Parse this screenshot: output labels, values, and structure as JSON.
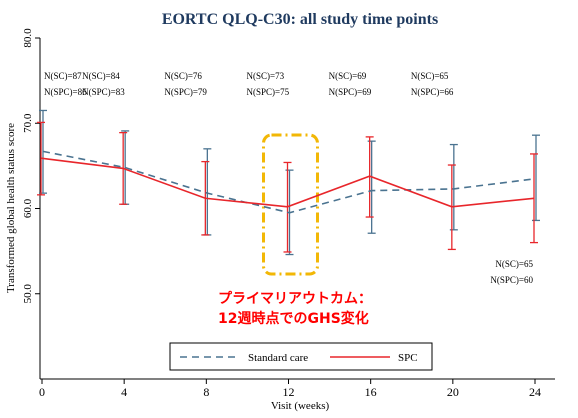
{
  "chart_data": {
    "type": "line",
    "title": "EORTC QLQ-C30: all study time points",
    "xlabel": "Visit (weeks)",
    "ylabel": "Transformed global health status score",
    "x": [
      0,
      4,
      8,
      12,
      16,
      20,
      24
    ],
    "xlim": [
      0,
      24
    ],
    "ylim": [
      40,
      80
    ],
    "xticks": [
      "0",
      "4",
      "8",
      "12",
      "16",
      "20",
      "24"
    ],
    "yticks": [
      "50.0",
      "60.0",
      "70.0",
      "80.0"
    ],
    "grid": false,
    "legend_position": "bottom",
    "series": [
      {
        "name": "Standard care",
        "color": "#4a7390",
        "style": "dashed",
        "values": [
          66.7,
          64.8,
          61.8,
          59.5,
          62.1,
          62.3,
          63.5
        ],
        "ci_low": [
          61.8,
          60.5,
          56.9,
          54.6,
          57.1,
          57.5,
          58.6
        ],
        "ci_high": [
          71.5,
          69.1,
          67.0,
          64.5,
          67.9,
          67.5,
          68.6
        ]
      },
      {
        "name": "SPC",
        "color": "#e8262b",
        "style": "solid",
        "values": [
          65.9,
          64.7,
          61.2,
          60.2,
          63.8,
          60.2,
          61.2
        ],
        "ci_low": [
          61.6,
          60.5,
          56.9,
          54.9,
          59.0,
          55.2,
          56.0
        ],
        "ci_high": [
          70.1,
          68.9,
          65.5,
          65.4,
          68.4,
          65.1,
          66.4
        ]
      }
    ],
    "n_labels": [
      {
        "x": 0,
        "sc": "N(SC)=87",
        "spc": "N(SPC)=86"
      },
      {
        "x": 4,
        "sc": "N(SC)=84",
        "spc": "N(SPC)=83"
      },
      {
        "x": 8,
        "sc": "N(SC)=76",
        "spc": "N(SPC)=79"
      },
      {
        "x": 12,
        "sc": "N(SC)=73",
        "spc": "N(SPC)=75"
      },
      {
        "x": 16,
        "sc": "N(SC)=69",
        "spc": "N(SPC)=69"
      },
      {
        "x": 20,
        "sc": "N(SC)=65",
        "spc": "N(SPC)=66"
      },
      {
        "x": 24,
        "sc": "N(SC)=65",
        "spc": "N(SPC)=60"
      }
    ],
    "highlight": {
      "x": 12,
      "color": "#f2b705",
      "line1": "プライマリアウトカム：",
      "line2": "12週時点でのGHS変化"
    }
  }
}
